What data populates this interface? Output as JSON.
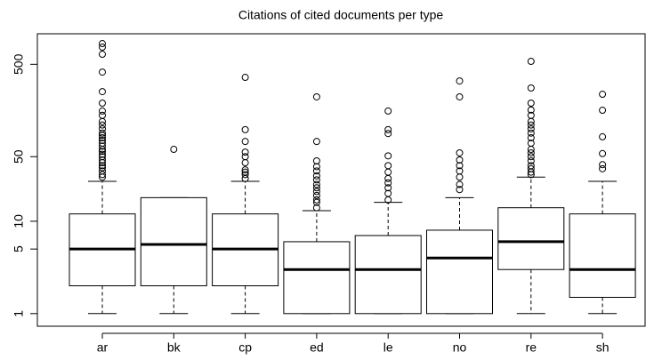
{
  "chart_data": {
    "type": "box",
    "title": "Citations of cited documents per type",
    "categories": [
      "ar",
      "bk",
      "cp",
      "ed",
      "le",
      "no",
      "re",
      "sh"
    ],
    "log_y": true,
    "ylim": [
      0.73,
      1070
    ],
    "yticks": [
      1,
      5,
      10,
      50,
      500
    ],
    "boxes": [
      {
        "whisker_low": 1,
        "q1": 2,
        "median": 5,
        "q3": 12,
        "whisker_high": 27,
        "outliers": [
          30,
          32,
          35,
          38,
          40,
          43,
          46,
          50,
          53,
          57,
          60,
          65,
          70,
          75,
          80,
          85,
          90,
          100,
          110,
          120,
          140,
          156,
          190,
          253,
          412,
          642,
          767,
          838
        ]
      },
      {
        "whisker_low": 1,
        "q1": 2,
        "median": 5.6,
        "q3": 18,
        "whisker_high": 18,
        "outliers": [
          60
        ]
      },
      {
        "whisker_low": 1,
        "q1": 2,
        "median": 5,
        "q3": 12,
        "whisker_high": 27,
        "outliers": [
          29,
          32,
          34,
          36,
          43,
          50,
          56,
          73,
          98,
          361
        ]
      },
      {
        "whisker_low": 1,
        "q1": 1,
        "median": 3,
        "q3": 6,
        "whisker_high": 13,
        "outliers": [
          14,
          16,
          17,
          19,
          21,
          23,
          25,
          28,
          31,
          35,
          39,
          45,
          73,
          222
        ]
      },
      {
        "whisker_low": 1,
        "q1": 1,
        "median": 3,
        "q3": 7,
        "whisker_high": 16,
        "outliers": [
          17,
          20,
          23,
          26,
          29,
          34,
          40,
          51,
          89,
          98,
          156
        ]
      },
      {
        "whisker_low": 1,
        "q1": 1,
        "median": 4,
        "q3": 8,
        "whisker_high": 18,
        "outliers": [
          22,
          25,
          30,
          35,
          40,
          46,
          55,
          222,
          330
        ]
      },
      {
        "whisker_low": 1,
        "q1": 3,
        "median": 6,
        "q3": 14,
        "whisker_high": 30,
        "outliers": [
          32,
          34,
          37,
          40,
          45,
          50,
          55,
          60,
          70,
          80,
          90,
          100,
          110,
          120,
          140,
          160,
          190,
          277,
          538
        ]
      },
      {
        "whisker_low": 1,
        "q1": 1.5,
        "median": 3,
        "q3": 12,
        "whisker_high": 27,
        "outliers": [
          37,
          41,
          54,
          82,
          159,
          237
        ]
      }
    ]
  }
}
